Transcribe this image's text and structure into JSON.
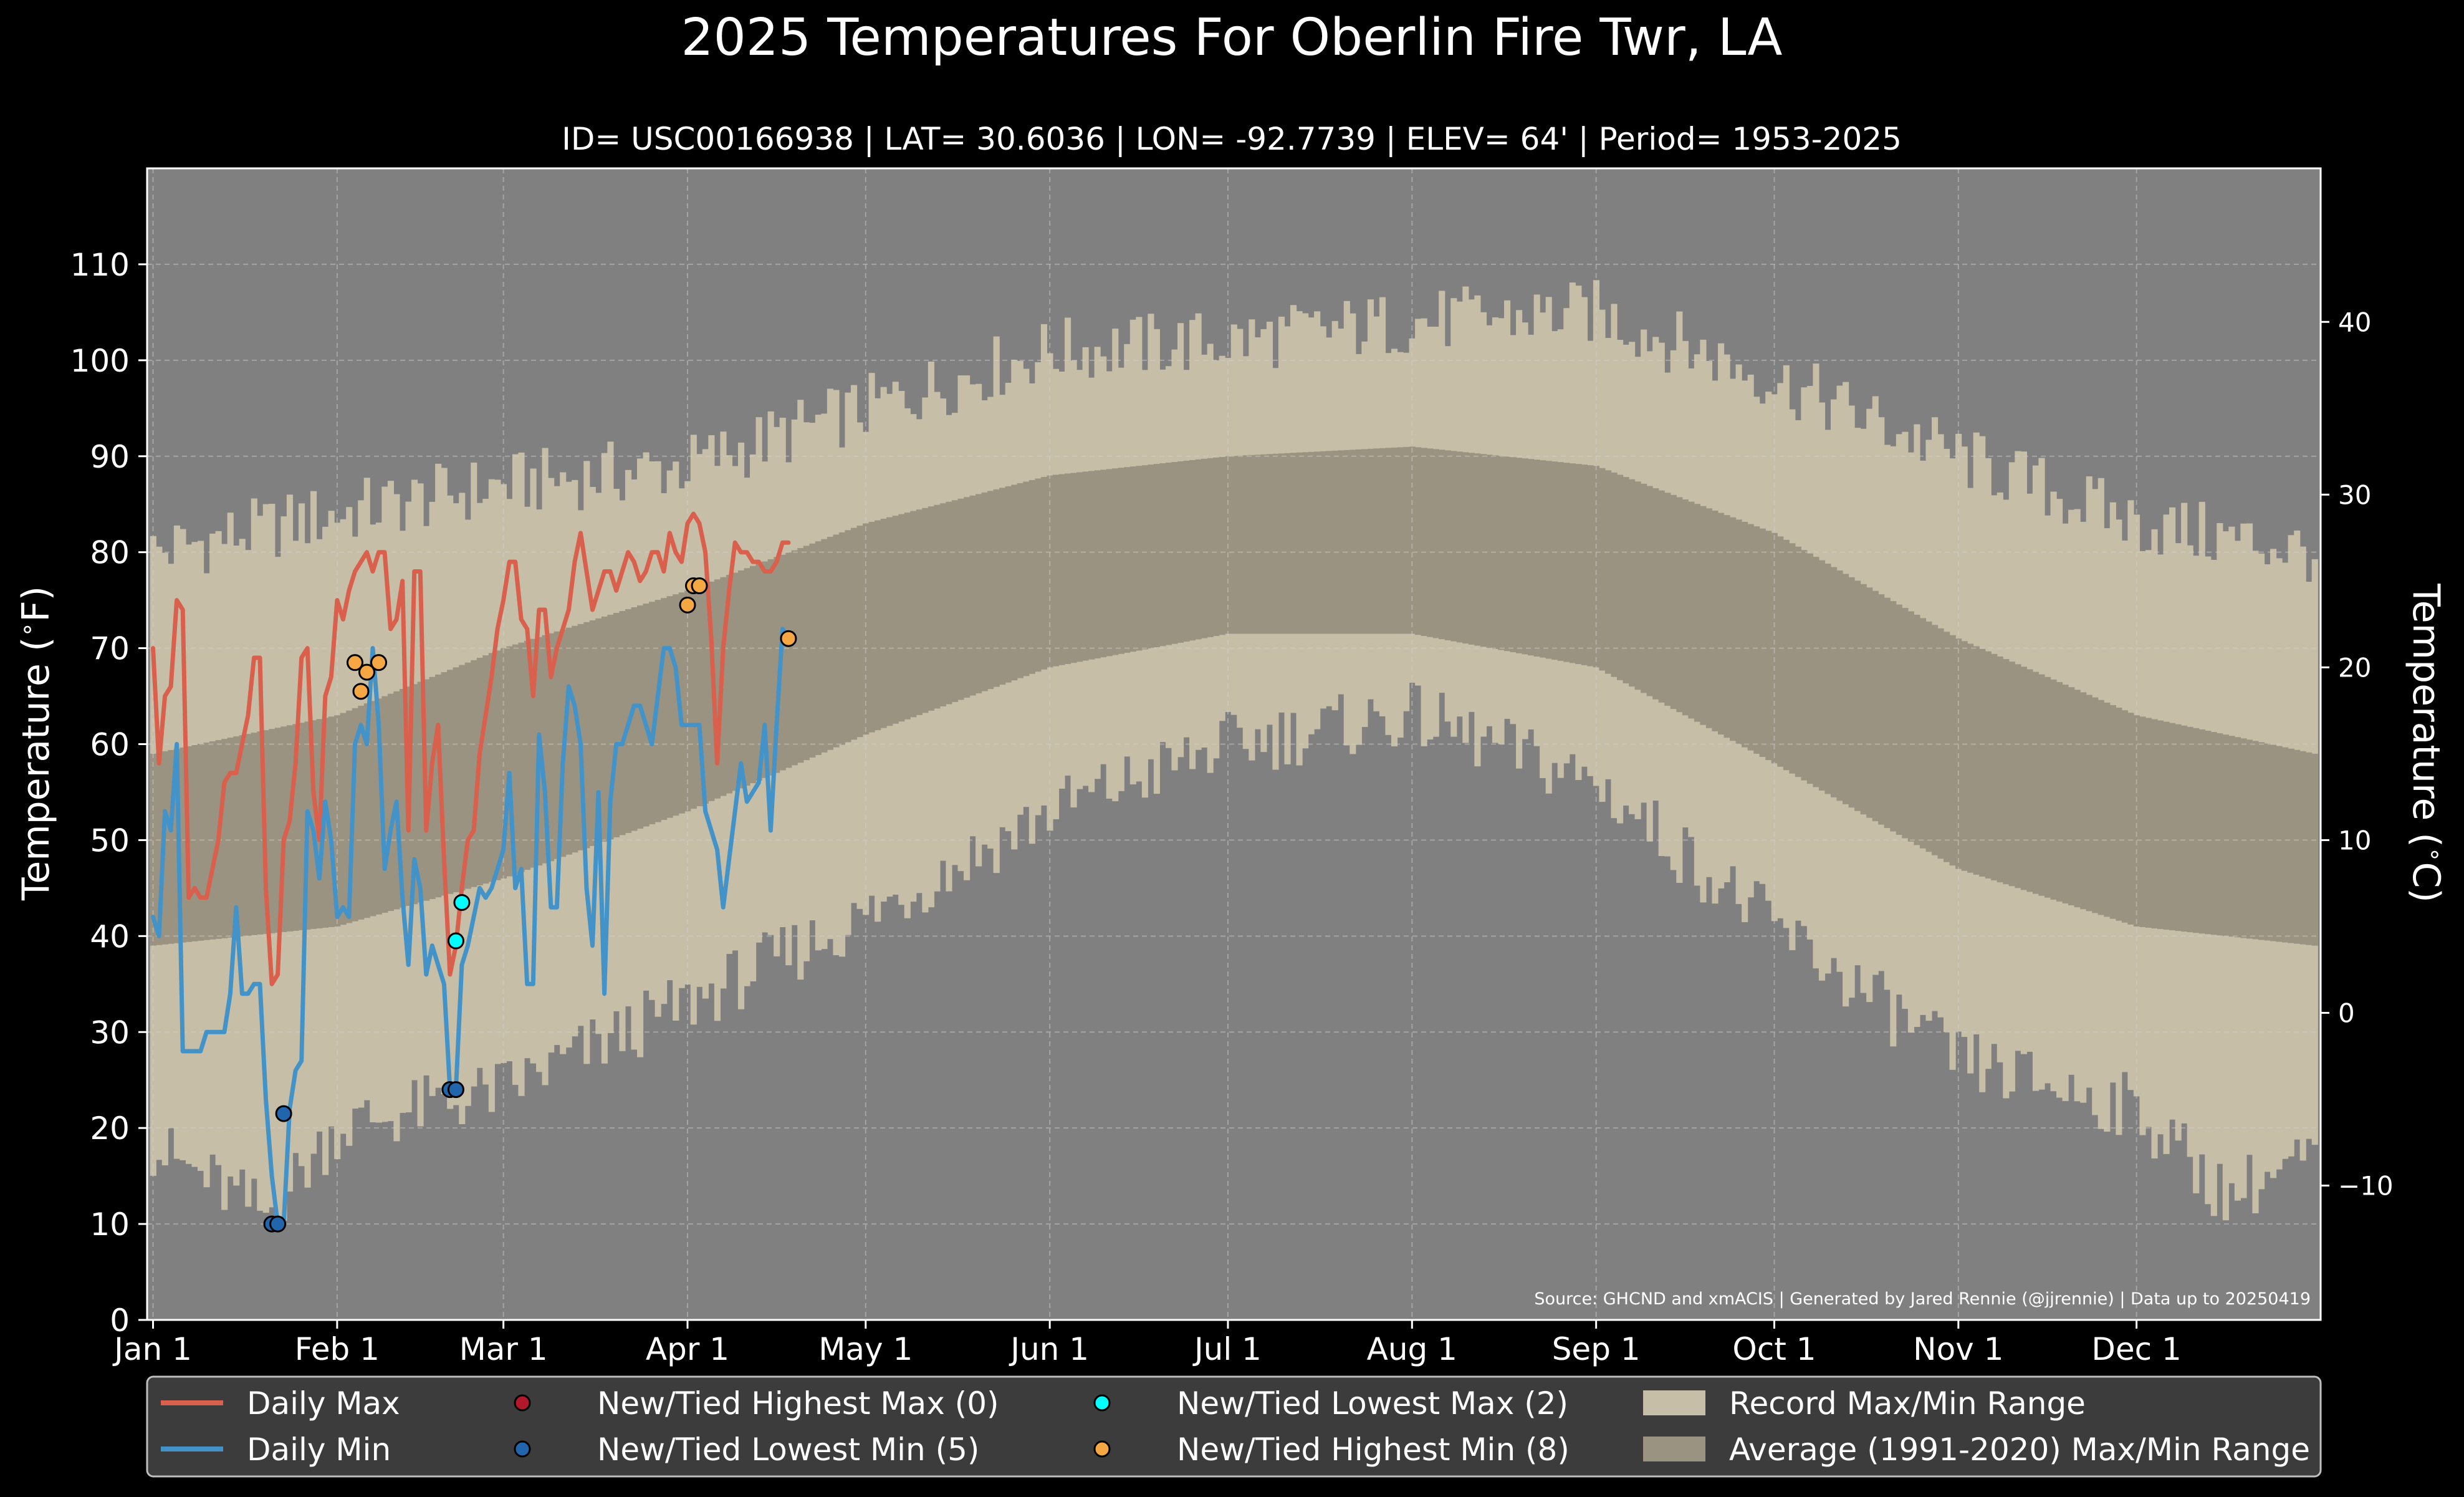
{
  "title": "2025 Temperatures For Oberlin Fire Twr, LA",
  "subtitle": "ID= USC00166938 | LAT= 30.6036 | LON= -92.7739 | ELEV= 64' | Period= 1953-2025",
  "source_note": "Source: GHCND and xmACIS | Generated by Jared Rennie (@jjrennie) | Data up to 20250419",
  "colors": {
    "background": "#000000",
    "plot_background": "#808080",
    "record_range": "#c6bea6",
    "average_range": "#9b9381",
    "daily_max": "#d9604c",
    "daily_min": "#4493c8",
    "new_highest_max": "#b2182b",
    "new_lowest_min": "#2166ac",
    "new_lowest_max": "#00ffff",
    "new_highest_min": "#f4a742",
    "legend_bg": "#3c3c3c"
  },
  "chart_data": {
    "type": "line",
    "title": "2025 Temperatures For Oberlin Fire Twr, LA",
    "xlabel": "",
    "ylabel": "Temperature ($^\\circ$F)",
    "ylabel_right": "Temperature ($^\\circ$C)",
    "ylim": [
      0,
      120
    ],
    "xlim_day_of_year": [
      0,
      366
    ],
    "grid": true,
    "legend_position": "bottom",
    "x_ticks": [
      {
        "day": 1,
        "label": "Jan 1"
      },
      {
        "day": 32,
        "label": "Feb 1"
      },
      {
        "day": 60,
        "label": "Mar 1"
      },
      {
        "day": 91,
        "label": "Apr 1"
      },
      {
        "day": 121,
        "label": "May 1"
      },
      {
        "day": 152,
        "label": "Jun 1"
      },
      {
        "day": 182,
        "label": "Jul 1"
      },
      {
        "day": 213,
        "label": "Aug 1"
      },
      {
        "day": 244,
        "label": "Sep 1"
      },
      {
        "day": 274,
        "label": "Oct 1"
      },
      {
        "day": 305,
        "label": "Nov 1"
      },
      {
        "day": 335,
        "label": "Dec 1"
      }
    ],
    "y_ticks_f": [
      "0",
      "10",
      "20",
      "30",
      "40",
      "50",
      "60",
      "70",
      "80",
      "90",
      "100",
      "110"
    ],
    "y_ticks_c": [
      {
        "c": -10,
        "label": "−10"
      },
      {
        "c": 0,
        "label": "0"
      },
      {
        "c": 10,
        "label": "10"
      },
      {
        "c": 20,
        "label": "20"
      },
      {
        "c": 30,
        "label": "30"
      },
      {
        "c": 40,
        "label": "40"
      }
    ],
    "record_max_monthly": [
      {
        "day": 1,
        "value": 80
      },
      {
        "day": 32,
        "value": 84
      },
      {
        "day": 60,
        "value": 87
      },
      {
        "day": 91,
        "value": 89
      },
      {
        "day": 121,
        "value": 95
      },
      {
        "day": 152,
        "value": 101
      },
      {
        "day": 182,
        "value": 102
      },
      {
        "day": 213,
        "value": 104
      },
      {
        "day": 244,
        "value": 105
      },
      {
        "day": 274,
        "value": 98
      },
      {
        "day": 305,
        "value": 90
      },
      {
        "day": 335,
        "value": 83
      },
      {
        "day": 365,
        "value": 80
      }
    ],
    "record_min_monthly": [
      {
        "day": 1,
        "value": 18
      },
      {
        "day": 20,
        "value": 11
      },
      {
        "day": 32,
        "value": 20
      },
      {
        "day": 60,
        "value": 24
      },
      {
        "day": 91,
        "value": 33
      },
      {
        "day": 121,
        "value": 42
      },
      {
        "day": 152,
        "value": 53
      },
      {
        "day": 182,
        "value": 60
      },
      {
        "day": 213,
        "value": 63
      },
      {
        "day": 244,
        "value": 56
      },
      {
        "day": 274,
        "value": 41
      },
      {
        "day": 305,
        "value": 27
      },
      {
        "day": 335,
        "value": 22
      },
      {
        "day": 350,
        "value": 13
      },
      {
        "day": 365,
        "value": 17
      }
    ],
    "average_max_monthly": [
      {
        "day": 1,
        "value": 59
      },
      {
        "day": 32,
        "value": 63
      },
      {
        "day": 60,
        "value": 70
      },
      {
        "day": 91,
        "value": 76
      },
      {
        "day": 121,
        "value": 83
      },
      {
        "day": 152,
        "value": 88
      },
      {
        "day": 182,
        "value": 90
      },
      {
        "day": 213,
        "value": 91
      },
      {
        "day": 244,
        "value": 89
      },
      {
        "day": 274,
        "value": 82
      },
      {
        "day": 305,
        "value": 71
      },
      {
        "day": 335,
        "value": 63
      },
      {
        "day": 365,
        "value": 59
      }
    ],
    "average_min_monthly": [
      {
        "day": 1,
        "value": 39
      },
      {
        "day": 32,
        "value": 41
      },
      {
        "day": 60,
        "value": 46
      },
      {
        "day": 91,
        "value": 53
      },
      {
        "day": 121,
        "value": 61
      },
      {
        "day": 152,
        "value": 68
      },
      {
        "day": 182,
        "value": 71.5
      },
      {
        "day": 213,
        "value": 71.5
      },
      {
        "day": 244,
        "value": 68
      },
      {
        "day": 274,
        "value": 58
      },
      {
        "day": 305,
        "value": 47
      },
      {
        "day": 335,
        "value": 41
      },
      {
        "day": 365,
        "value": 39
      }
    ],
    "series": [
      {
        "name": "Daily Max",
        "color": "#d9604c",
        "points": [
          [
            1,
            70
          ],
          [
            2,
            58
          ],
          [
            3,
            65
          ],
          [
            4,
            66
          ],
          [
            5,
            75
          ],
          [
            6,
            74
          ],
          [
            7,
            44
          ],
          [
            8,
            45
          ],
          [
            9,
            44
          ],
          [
            10,
            44
          ],
          [
            11,
            47
          ],
          [
            12,
            50
          ],
          [
            13,
            56
          ],
          [
            14,
            57
          ],
          [
            15,
            57
          ],
          [
            16,
            60
          ],
          [
            17,
            63
          ],
          [
            18,
            69
          ],
          [
            19,
            69
          ],
          [
            20,
            45
          ],
          [
            21,
            35
          ],
          [
            22,
            36
          ],
          [
            23,
            50
          ],
          [
            24,
            52
          ],
          [
            25,
            58
          ],
          [
            26,
            69
          ],
          [
            27,
            70
          ],
          [
            28,
            55
          ],
          [
            29,
            50
          ],
          [
            30,
            65
          ],
          [
            31,
            67
          ],
          [
            32,
            75
          ],
          [
            33,
            73
          ],
          [
            34,
            76
          ],
          [
            35,
            78
          ],
          [
            36,
            79
          ],
          [
            37,
            80
          ],
          [
            38,
            78
          ],
          [
            39,
            80
          ],
          [
            40,
            80
          ],
          [
            41,
            72
          ],
          [
            42,
            73
          ],
          [
            43,
            77
          ],
          [
            44,
            51
          ],
          [
            45,
            78
          ],
          [
            46,
            78
          ],
          [
            47,
            51
          ],
          [
            48,
            58
          ],
          [
            49,
            62
          ],
          [
            50,
            48
          ],
          [
            51,
            36
          ],
          [
            52,
            39
          ],
          [
            53,
            45
          ],
          [
            54,
            50
          ],
          [
            55,
            51
          ],
          [
            56,
            59
          ],
          [
            57,
            63
          ],
          [
            58,
            67
          ],
          [
            59,
            72
          ],
          [
            60,
            75
          ],
          [
            61,
            79
          ],
          [
            62,
            79
          ],
          [
            63,
            73
          ],
          [
            64,
            72
          ],
          [
            65,
            65
          ],
          [
            66,
            74
          ],
          [
            67,
            74
          ],
          [
            68,
            67
          ],
          [
            69,
            70
          ],
          [
            70,
            72
          ],
          [
            71,
            74
          ],
          [
            72,
            79
          ],
          [
            73,
            82
          ],
          [
            74,
            78
          ],
          [
            75,
            74
          ],
          [
            76,
            76
          ],
          [
            77,
            78
          ],
          [
            78,
            78
          ],
          [
            79,
            76
          ],
          [
            80,
            78
          ],
          [
            81,
            80
          ],
          [
            82,
            79
          ],
          [
            83,
            77
          ],
          [
            84,
            78
          ],
          [
            85,
            80
          ],
          [
            86,
            80
          ],
          [
            87,
            78
          ],
          [
            88,
            82
          ],
          [
            89,
            80
          ],
          [
            90,
            79
          ],
          [
            91,
            83
          ],
          [
            92,
            84
          ],
          [
            93,
            83
          ],
          [
            94,
            80
          ],
          [
            95,
            71
          ],
          [
            96,
            58
          ],
          [
            97,
            70
          ],
          [
            98,
            76
          ],
          [
            99,
            81
          ],
          [
            100,
            80
          ],
          [
            101,
            80
          ],
          [
            102,
            79
          ],
          [
            103,
            79
          ],
          [
            104,
            78
          ],
          [
            105,
            78
          ],
          [
            106,
            79
          ],
          [
            107,
            81
          ],
          [
            108,
            81
          ]
        ]
      },
      {
        "name": "Daily Min",
        "color": "#4493c8",
        "points": [
          [
            1,
            42
          ],
          [
            2,
            40
          ],
          [
            3,
            53
          ],
          [
            4,
            51
          ],
          [
            5,
            60
          ],
          [
            6,
            28
          ],
          [
            7,
            28
          ],
          [
            8,
            28
          ],
          [
            9,
            28
          ],
          [
            10,
            30
          ],
          [
            11,
            30
          ],
          [
            12,
            30
          ],
          [
            13,
            30
          ],
          [
            14,
            34
          ],
          [
            15,
            43
          ],
          [
            16,
            34
          ],
          [
            17,
            34
          ],
          [
            18,
            35
          ],
          [
            19,
            35
          ],
          [
            20,
            23
          ],
          [
            21,
            15
          ],
          [
            22,
            10
          ],
          [
            23,
            10
          ],
          [
            24,
            22
          ],
          [
            25,
            26
          ],
          [
            26,
            27
          ],
          [
            27,
            53
          ],
          [
            28,
            51
          ],
          [
            29,
            46
          ],
          [
            30,
            54
          ],
          [
            31,
            50
          ],
          [
            32,
            42
          ],
          [
            33,
            43
          ],
          [
            34,
            42
          ],
          [
            35,
            60
          ],
          [
            36,
            62
          ],
          [
            37,
            60
          ],
          [
            38,
            70
          ],
          [
            39,
            62
          ],
          [
            40,
            47
          ],
          [
            41,
            51
          ],
          [
            42,
            54
          ],
          [
            43,
            44
          ],
          [
            44,
            37
          ],
          [
            45,
            48
          ],
          [
            46,
            45
          ],
          [
            47,
            36
          ],
          [
            48,
            39
          ],
          [
            49,
            37
          ],
          [
            50,
            35
          ],
          [
            51,
            24
          ],
          [
            52,
            24
          ],
          [
            53,
            37
          ],
          [
            54,
            39
          ],
          [
            55,
            42
          ],
          [
            56,
            45
          ],
          [
            57,
            44
          ],
          [
            58,
            45
          ],
          [
            59,
            47
          ],
          [
            60,
            49
          ],
          [
            61,
            57
          ],
          [
            62,
            45
          ],
          [
            63,
            47
          ],
          [
            64,
            35
          ],
          [
            65,
            35
          ],
          [
            66,
            61
          ],
          [
            67,
            55
          ],
          [
            68,
            43
          ],
          [
            69,
            43
          ],
          [
            70,
            58
          ],
          [
            71,
            66
          ],
          [
            72,
            64
          ],
          [
            73,
            60
          ],
          [
            74,
            45
          ],
          [
            75,
            39
          ],
          [
            76,
            55
          ],
          [
            77,
            34
          ],
          [
            78,
            54
          ],
          [
            79,
            60
          ],
          [
            80,
            60
          ],
          [
            81,
            62
          ],
          [
            82,
            64
          ],
          [
            83,
            64
          ],
          [
            84,
            62
          ],
          [
            85,
            60
          ],
          [
            86,
            65
          ],
          [
            87,
            70
          ],
          [
            88,
            70
          ],
          [
            89,
            68
          ],
          [
            90,
            62
          ],
          [
            93,
            62
          ],
          [
            94,
            53
          ],
          [
            95,
            51
          ],
          [
            96,
            49
          ],
          [
            97,
            43
          ],
          [
            98,
            48
          ],
          [
            99,
            53
          ],
          [
            100,
            58
          ],
          [
            101,
            54
          ],
          [
            102,
            55
          ],
          [
            103,
            56
          ],
          [
            104,
            62
          ],
          [
            105,
            51
          ],
          [
            106,
            62
          ],
          [
            107,
            72
          ],
          [
            108,
            71
          ]
        ]
      }
    ],
    "markers": {
      "new_tied_highest_max": [],
      "new_tied_lowest_min": [
        [
          21,
          10
        ],
        [
          22,
          10
        ],
        [
          23,
          21.5
        ],
        [
          51,
          24
        ],
        [
          52,
          24
        ]
      ],
      "new_tied_lowest_max": [
        [
          52,
          39.5
        ],
        [
          53,
          43.5
        ]
      ],
      "new_tied_highest_min": [
        [
          35,
          68.5
        ],
        [
          36,
          65.5
        ],
        [
          37,
          67.5
        ],
        [
          39,
          68.5
        ],
        [
          91,
          74.5
        ],
        [
          92,
          76.5
        ],
        [
          93,
          76.5
        ],
        [
          108,
          71
        ]
      ]
    },
    "legend": [
      {
        "label": "Daily Max",
        "kind": "line",
        "color": "#d9604c"
      },
      {
        "label": "Daily Min",
        "kind": "line",
        "color": "#4493c8"
      },
      {
        "label": "New/Tied Highest Max (0)",
        "kind": "marker",
        "color": "#b2182b"
      },
      {
        "label": "New/Tied Lowest Min (5)",
        "kind": "marker",
        "color": "#2166ac"
      },
      {
        "label": "New/Tied Lowest Max (2)",
        "kind": "marker",
        "color": "#00ffff"
      },
      {
        "label": "New/Tied Highest Min (8)",
        "kind": "marker",
        "color": "#f4a742"
      },
      {
        "label": "Record Max/Min Range",
        "kind": "patch",
        "color": "#c6bea6"
      },
      {
        "label": "Average (1991-2020) Max/Min Range",
        "kind": "patch",
        "color": "#9b9381"
      }
    ]
  }
}
